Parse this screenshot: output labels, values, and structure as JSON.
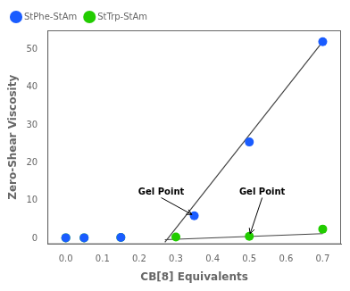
{
  "chart_data": {
    "type": "scatter",
    "xlabel": "CB[8] Equivalents",
    "ylabel": "Zero-Shear Viscosity",
    "xlim": [
      -0.05,
      0.75
    ],
    "ylim": [
      -1.5,
      55
    ],
    "xticks": [
      {
        "value": 0,
        "label": "0.0"
      },
      0.1,
      0.2,
      0.3,
      0.4,
      0.5,
      0.6,
      0.7
    ],
    "yticks": [
      0,
      10,
      20,
      30,
      40,
      50
    ],
    "grid": false,
    "legend": "upper left",
    "series": [
      {
        "type": "line",
        "color": "#444444",
        "x": [
          0.27,
          0.7
        ],
        "values": [
          -1.0,
          52.0
        ]
      },
      {
        "type": "line",
        "color": "#444444",
        "x": [
          0.27,
          0.7
        ],
        "values": [
          -0.3,
          1.3
        ]
      },
      {
        "type": "scatter",
        "name": "StPhe-StAm",
        "color": "#1a5cff",
        "marker": "circle",
        "x": [
          0.0,
          0.05,
          0.15,
          0.35,
          0.5,
          0.7
        ],
        "values": [
          0.2,
          0.2,
          0.3,
          6.0,
          25.5,
          52.0
        ]
      },
      {
        "type": "scatter",
        "name": "StTrp-StAm",
        "color": "#22cc00",
        "marker": "circle",
        "x": [
          0.0,
          0.05,
          0.15,
          0.3,
          0.5,
          0.7
        ],
        "values": [
          0.2,
          0.2,
          0.3,
          0.4,
          0.6,
          2.5
        ]
      }
    ],
    "annotations": [
      {
        "text": "Gel Point",
        "x": 0.35,
        "y": 6.0,
        "text_x": 0.26,
        "text_y": 11.5
      },
      {
        "text": "Gel Point",
        "x": 0.5,
        "y": 0.6,
        "text_x": 0.535,
        "text_y": 11.5
      }
    ]
  }
}
